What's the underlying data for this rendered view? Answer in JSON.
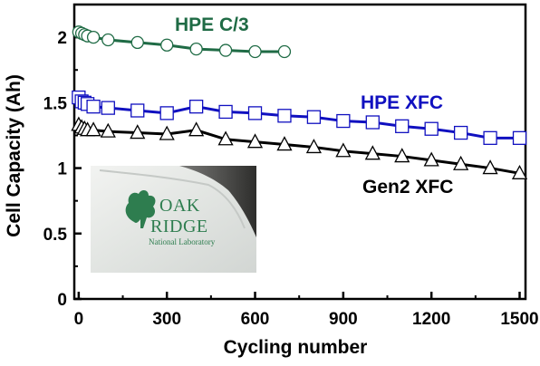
{
  "chart_data": {
    "type": "line",
    "xlabel": "Cycling number",
    "ylabel": "Cell Capacity (Ah)",
    "xlim": [
      -15,
      1520
    ],
    "ylim": [
      0,
      2.25
    ],
    "xticks": [
      0,
      300,
      600,
      900,
      1200,
      1500
    ],
    "yticks": [
      0,
      0.5,
      1,
      1.5,
      2
    ],
    "xtick_labels": [
      "0",
      "300",
      "600",
      "900",
      "1200",
      "1500"
    ],
    "ytick_labels": [
      "0",
      "0.5",
      "1",
      "1.5",
      "2"
    ],
    "grid": false,
    "series": [
      {
        "name": "HPE C/3",
        "color": "#1f6b45",
        "marker": "circle",
        "x": [
          0,
          10,
          20,
          30,
          50,
          100,
          200,
          300,
          400,
          500,
          600,
          700
        ],
        "y": [
          2.04,
          2.03,
          2.02,
          2.01,
          2.0,
          1.98,
          1.96,
          1.94,
          1.91,
          1.9,
          1.89,
          1.89
        ]
      },
      {
        "name": "HPE XFC",
        "color": "#1010c0",
        "marker": "square",
        "x": [
          0,
          10,
          20,
          30,
          50,
          100,
          200,
          300,
          400,
          500,
          600,
          700,
          800,
          900,
          1000,
          1100,
          1200,
          1300,
          1400,
          1500
        ],
        "y": [
          1.54,
          1.51,
          1.5,
          1.49,
          1.47,
          1.46,
          1.44,
          1.42,
          1.47,
          1.43,
          1.42,
          1.4,
          1.39,
          1.36,
          1.35,
          1.32,
          1.3,
          1.27,
          1.23,
          1.23
        ]
      },
      {
        "name": "Gen2 XFC",
        "color": "#000000",
        "marker": "triangle",
        "x": [
          0,
          10,
          20,
          30,
          50,
          100,
          200,
          300,
          400,
          500,
          600,
          700,
          800,
          900,
          1000,
          1100,
          1200,
          1300,
          1400,
          1500
        ],
        "y": [
          1.33,
          1.31,
          1.3,
          1.29,
          1.29,
          1.28,
          1.27,
          1.26,
          1.29,
          1.22,
          1.2,
          1.18,
          1.16,
          1.13,
          1.11,
          1.09,
          1.06,
          1.03,
          1.0,
          0.96
        ]
      }
    ],
    "annotations": [
      "HPE C/3",
      "HPE XFC",
      "Gen2 XFC"
    ]
  },
  "inset": {
    "logo_line1": "OAK",
    "logo_line2": "RIDGE",
    "logo_line3": "National Laboratory"
  }
}
